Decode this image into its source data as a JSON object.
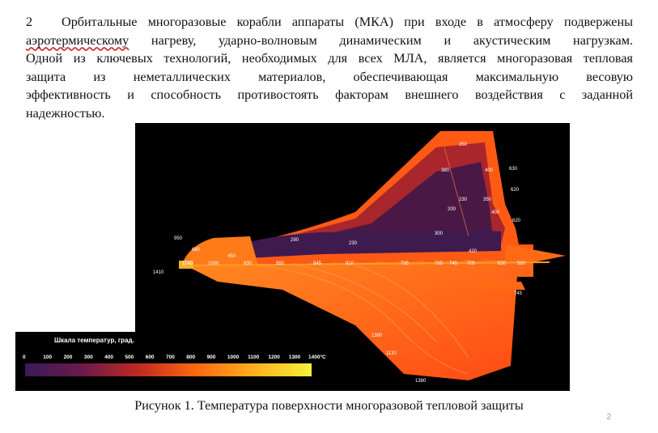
{
  "paragraph": {
    "number": "2",
    "line1": "Орбитальные многоразовые  корабли аппараты (МКА) при входе в атмосферу подвержены",
    "line2_wavy": "аэротермическому",
    "line2_rest": " нагреву,   ударно-волновым динамическим и  акустическим нагрузкам.",
    "line3": "Одной из ключевых технологий, необходимых для всех  МЛА, является многоразовая тепловая",
    "line4": "защита  из  неметаллических  материалов,  обеспечивающая  максимальную  весовую",
    "line5": "эффективность и способность    противостоять факторам внешнего воздействия с  заданной",
    "line6": "надежностью."
  },
  "figure": {
    "scale_title": "Шкала температур, град.",
    "scale_ticks": [
      "0",
      "100",
      "200",
      "300",
      "400",
      "500",
      "600",
      "700",
      "800",
      "900",
      "1000",
      "1100",
      "1200",
      "1300",
      "1400°C"
    ],
    "colors": {
      "black": "#000000",
      "cool": "#3a1555",
      "mid": "#c0302a",
      "hot": "#ff5a10",
      "hottest": "#f4ef3a"
    },
    "upper_labels": [
      "350",
      "380",
      "400",
      "630",
      "620",
      "230",
      "350",
      "200",
      "400",
      "620",
      "300",
      "290",
      "230",
      "420",
      "950",
      "680",
      "450"
    ],
    "centerline_labels": [
      "1410",
      "1140",
      "1000",
      "930",
      "880",
      "845",
      "810",
      "795",
      "765",
      "745",
      "705",
      "630",
      "560"
    ],
    "lower_labels": [
      "745",
      "1380",
      "1130",
      "1380"
    ]
  },
  "caption": "Рисунок 1. Температура поверхности многоразовой тепловой защиты",
  "page_number": "2"
}
